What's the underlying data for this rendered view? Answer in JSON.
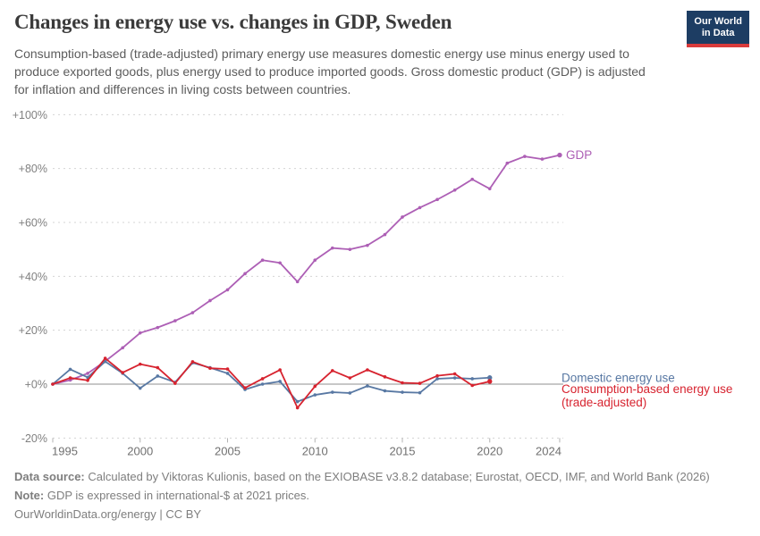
{
  "header": {
    "title": "Changes in energy use vs. changes in GDP, Sweden",
    "subtitle": "Consumption-based (trade-adjusted) primary energy use measures domestic energy use minus energy used to produce exported goods, plus energy used to produce imported goods. Gross domestic product (GDP) is adjusted for inflation and differences in living costs between countries.",
    "logo": {
      "line1": "Our World",
      "line2": "in Data",
      "bg_color": "#1d3d63",
      "stripe_color": "#d93b3b"
    }
  },
  "chart_data": {
    "type": "line",
    "title": "Changes in energy use vs. changes in GDP, Sweden",
    "xlabel": "",
    "ylabel": "",
    "xlim": [
      1995,
      2025
    ],
    "ylim": [
      -20,
      100
    ],
    "grid": "horizontal-dashed",
    "legend_position": "end-of-line-labels",
    "x_ticks": [
      1995,
      2000,
      2005,
      2010,
      2015,
      2020,
      2024
    ],
    "y_ticks": [
      {
        "value": 100,
        "label": "+100%"
      },
      {
        "value": 80,
        "label": "+80%"
      },
      {
        "value": 60,
        "label": "+60%"
      },
      {
        "value": 40,
        "label": "+40%"
      },
      {
        "value": 20,
        "label": "+20%"
      },
      {
        "value": 0,
        "label": "+0%"
      },
      {
        "value": -20,
        "label": "-20%"
      }
    ],
    "series": [
      {
        "name": "GDP",
        "label_lines": [
          "GDP"
        ],
        "color": "#ad5fb5",
        "start_year": 1995,
        "values": [
          0,
          1.5,
          4,
          8.5,
          13.5,
          19,
          21,
          23.5,
          26.5,
          31,
          35,
          41,
          46,
          45,
          38,
          46,
          50.5,
          50,
          51.5,
          55.5,
          62,
          65.5,
          68.5,
          72,
          76,
          72.5,
          82,
          84.5,
          83.5,
          85
        ]
      },
      {
        "name": "Domestic energy use",
        "label_lines": [
          "Domestic energy use"
        ],
        "color": "#5878a3",
        "start_year": 1995,
        "values": [
          0,
          5.5,
          2.5,
          8.4,
          4,
          -1.5,
          3,
          0.7,
          7.9,
          6.1,
          4,
          -2,
          0,
          1,
          -6.5,
          -4,
          -3,
          -3.3,
          -0.7,
          -2.5,
          -3,
          -3.2,
          2,
          2.3,
          2,
          2.4
        ]
      },
      {
        "name": "Consumption-based energy use (trade-adjusted)",
        "label_lines": [
          "Consumption-based energy use",
          "(trade-adjusted)"
        ],
        "color": "#d7232f",
        "start_year": 1995,
        "values": [
          0,
          2.3,
          1.4,
          9.6,
          4.3,
          7.4,
          6.1,
          0.3,
          8.3,
          5.9,
          5.6,
          -1.4,
          2,
          5.3,
          -8.8,
          -0.8,
          5,
          2.3,
          5.3,
          2.7,
          0.5,
          0.3,
          3.1,
          3.8,
          -0.5,
          1
        ]
      }
    ]
  },
  "footer": {
    "datasource_label": "Data source:",
    "datasource_text": "Calculated by Viktoras Kulionis, based on the EXIOBASE v3.8.2 database; Eurostat, OECD, IMF, and World Bank (2026)",
    "note_label": "Note:",
    "note_text": "GDP is expressed in international-$ at 2021 prices.",
    "link_text": "OurWorldinData.org/energy | CC BY"
  }
}
